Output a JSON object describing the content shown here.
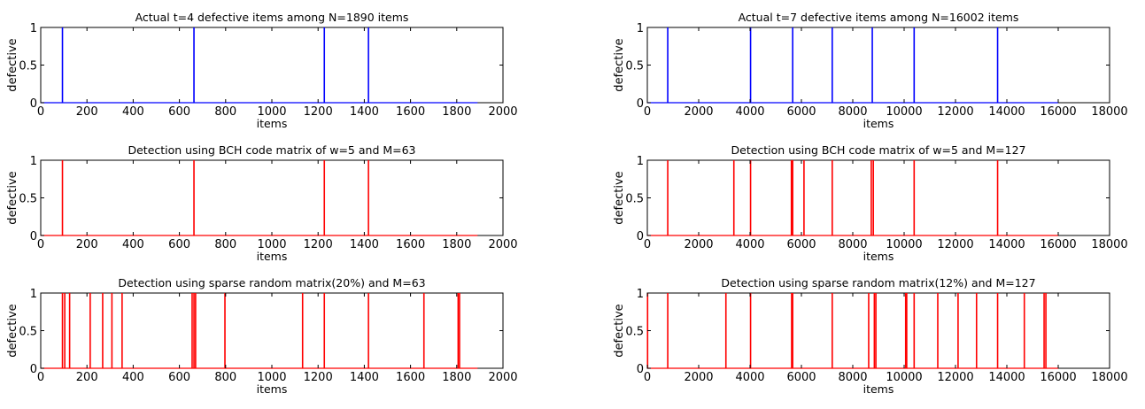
{
  "figure": {
    "colors": {
      "blue": "#0000ff",
      "red": "#ff0000",
      "axis": "#000000"
    }
  },
  "chart_data": [
    {
      "type": "line",
      "title": "Actual t=4 defective items among N=1890 items",
      "xlabel": "items",
      "ylabel": "defective",
      "xlim": [
        0,
        2000
      ],
      "ylim": [
        0,
        1
      ],
      "xticks": [
        0,
        200,
        400,
        600,
        800,
        1000,
        1200,
        1400,
        1600,
        1800,
        2000
      ],
      "yticks": [
        0,
        0.5,
        1
      ],
      "ytick_labels": [
        "0",
        "0.5",
        "1"
      ],
      "data_extent": [
        1,
        1890
      ],
      "color": "#0000ff",
      "spikes": [
        94,
        663,
        1227,
        1418
      ]
    },
    {
      "type": "line",
      "title": "Actual t=7 defective items among N=16002 items",
      "xlabel": "items",
      "ylabel": "defective",
      "xlim": [
        0,
        18000
      ],
      "ylim": [
        0,
        1
      ],
      "xticks": [
        0,
        2000,
        4000,
        6000,
        8000,
        10000,
        12000,
        14000,
        16000,
        18000
      ],
      "yticks": [
        0,
        0.5,
        1
      ],
      "ytick_labels": [
        "0",
        "0.5",
        "1"
      ],
      "data_extent": [
        1,
        16002
      ],
      "color": "#0000ff",
      "spikes": [
        795,
        4020,
        5660,
        7200,
        8760,
        10390,
        13640
      ]
    },
    {
      "type": "line",
      "title": "Detection using  BCH code matrix of w=5 and M=63",
      "xlabel": "items",
      "ylabel": "defective",
      "xlim": [
        0,
        2000
      ],
      "ylim": [
        0,
        1
      ],
      "xticks": [
        0,
        200,
        400,
        600,
        800,
        1000,
        1200,
        1400,
        1600,
        1800,
        2000
      ],
      "yticks": [
        0,
        0.5,
        1
      ],
      "ytick_labels": [
        "0",
        "0.5",
        "1"
      ],
      "data_extent": [
        1,
        1890
      ],
      "color": "#ff0000",
      "spikes": [
        94,
        663,
        1227,
        1418
      ]
    },
    {
      "type": "line",
      "title": "Detection using  BCH code matrix of w=5 and M=127",
      "xlabel": "items",
      "ylabel": "defective",
      "xlim": [
        0,
        18000
      ],
      "ylim": [
        0,
        1
      ],
      "xticks": [
        0,
        2000,
        4000,
        6000,
        8000,
        10000,
        12000,
        14000,
        16000,
        18000
      ],
      "yticks": [
        0,
        0.5,
        1
      ],
      "ytick_labels": [
        "0",
        "0.5",
        "1"
      ],
      "data_extent": [
        1,
        16002
      ],
      "color": "#ff0000",
      "spikes": [
        795,
        3370,
        4020,
        5610,
        5660,
        6100,
        7200,
        8720,
        8800,
        10390,
        13640
      ]
    },
    {
      "type": "line",
      "title": "Detection using  sparse random matrix(20%) and M=63",
      "xlabel": "items",
      "ylabel": "defective",
      "xlim": [
        0,
        2000
      ],
      "ylim": [
        0,
        1
      ],
      "xticks": [
        0,
        200,
        400,
        600,
        800,
        1000,
        1200,
        1400,
        1600,
        1800,
        2000
      ],
      "yticks": [
        0,
        0.5,
        1
      ],
      "ytick_labels": [
        "0",
        "0.5",
        "1"
      ],
      "data_extent": [
        1,
        1890
      ],
      "color": "#ff0000",
      "spikes": [
        94,
        104,
        125,
        214,
        268,
        308,
        352,
        655,
        663,
        670,
        797,
        1133,
        1227,
        1418,
        1658,
        1806,
        1812
      ]
    },
    {
      "type": "line",
      "title": "Detection using  sparse random matrix(12%) and M=127",
      "xlabel": "items",
      "ylabel": "defective",
      "xlim": [
        0,
        18000
      ],
      "ylim": [
        0,
        1
      ],
      "xticks": [
        0,
        2000,
        4000,
        6000,
        8000,
        10000,
        12000,
        14000,
        16000,
        18000
      ],
      "yticks": [
        0,
        0.5,
        1
      ],
      "ytick_labels": [
        "0",
        "0.5",
        "1"
      ],
      "data_extent": [
        1,
        16002
      ],
      "color": "#ff0000",
      "spikes": [
        10,
        795,
        3060,
        4020,
        5620,
        5660,
        7200,
        8620,
        8840,
        8900,
        10060,
        10100,
        10390,
        11310,
        12100,
        12820,
        13640,
        14680,
        15450,
        15520
      ]
    }
  ]
}
